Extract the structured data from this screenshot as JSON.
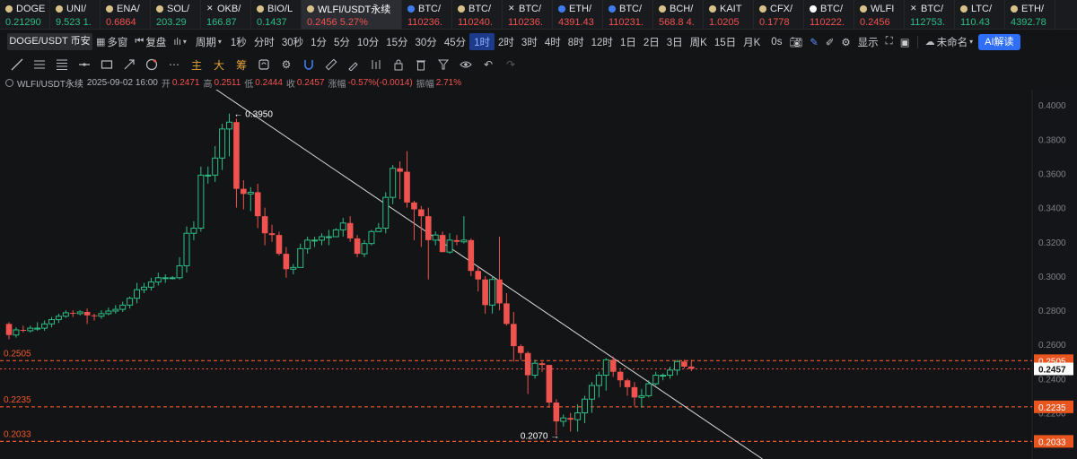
{
  "tickers": [
    {
      "symbol": "DOGE",
      "price": "0.21290",
      "dir": "up",
      "icon": "coin-icon"
    },
    {
      "symbol": "UNI/",
      "price": "9.523 1.",
      "dir": "up",
      "icon": "coin-icon"
    },
    {
      "symbol": "ENA/",
      "price": "0.6864",
      "dir": "down",
      "icon": "coin-icon"
    },
    {
      "symbol": "SOL/",
      "price": "203.29",
      "dir": "up",
      "icon": "coin-icon"
    },
    {
      "symbol": "OKB/",
      "price": "166.87",
      "dir": "up",
      "icon": "okx-icon"
    },
    {
      "symbol": "BIO/L",
      "price": "0.1437",
      "dir": "up",
      "icon": "coin-icon"
    },
    {
      "symbol": "WLFI/USDT永续",
      "price": "0.2456  5.27%",
      "dir": "down",
      "icon": "coin-icon",
      "active": true
    },
    {
      "symbol": "BTC/",
      "price": "110236.",
      "dir": "down",
      "icon": "binance-icon"
    },
    {
      "symbol": "BTC/",
      "price": "110240.",
      "dir": "down",
      "icon": "coin-icon"
    },
    {
      "symbol": "BTC/",
      "price": "110236.",
      "dir": "down",
      "icon": "okx-icon"
    },
    {
      "symbol": "ETH/",
      "price": "4391.43",
      "dir": "down",
      "icon": "binance-icon"
    },
    {
      "symbol": "BTC/",
      "price": "110231.",
      "dir": "down",
      "icon": "binance-icon"
    },
    {
      "symbol": "BCH/",
      "price": "568.8 4.",
      "dir": "down",
      "icon": "coin-icon"
    },
    {
      "symbol": "KAIT",
      "price": "1.0205",
      "dir": "down",
      "icon": "coin-icon"
    },
    {
      "symbol": "CFX/",
      "price": "0.1778",
      "dir": "down",
      "icon": "coin-icon"
    },
    {
      "symbol": "BTC/",
      "price": "110222.",
      "dir": "down",
      "icon": "white-icon"
    },
    {
      "symbol": "WLFI",
      "price": "0.2456",
      "dir": "down",
      "icon": "coin-icon"
    },
    {
      "symbol": "BTC/",
      "price": "112753.",
      "dir": "up",
      "icon": "okx-icon"
    },
    {
      "symbol": "LTC/",
      "price": "110.43",
      "dir": "up",
      "icon": "coin-icon"
    },
    {
      "symbol": "ETH/",
      "price": "4392.78",
      "dir": "up",
      "icon": "coin-icon"
    }
  ],
  "toolbar": {
    "pair_label": "DOGE/USDT 币安",
    "multi_window": "多窗",
    "replay": "复盘",
    "period": "周期",
    "intervals": [
      "1秒",
      "分时",
      "30秒",
      "1分",
      "5分",
      "10分",
      "15分",
      "30分",
      "45分",
      "1时",
      "2时",
      "3时",
      "4时",
      "8时",
      "12时",
      "1日",
      "2日",
      "3日",
      "周K",
      "15日",
      "月K"
    ],
    "selected_interval": "1时",
    "countdown": "0s",
    "display": "显示",
    "unnamed": "未命名",
    "ai": "AI解读"
  },
  "drawing_tools": {
    "gold_labels": [
      "主",
      "大",
      "筹"
    ]
  },
  "info": {
    "symbol": "WLFI/USDT永续",
    "datetime": "2025-09-02 16:00",
    "open_label": "开",
    "open": "0.2471",
    "high_label": "高",
    "high": "0.2511",
    "low_label": "低",
    "low": "0.2444",
    "close_label": "收",
    "close": "0.2457",
    "change_label": "涨幅",
    "change": "-0.57%(-0.0014)",
    "amp_label": "振幅",
    "amp": "2.71%"
  },
  "chart_data": {
    "type": "candlestick",
    "ylim": [
      0.193,
      0.409
    ],
    "y_ticks": [
      "0.4000",
      "0.3800",
      "0.3600",
      "0.3400",
      "0.3200",
      "0.3000",
      "0.2800",
      "0.2600",
      "0.2400",
      "0.2200"
    ],
    "y_tick_values": [
      0.4,
      0.38,
      0.36,
      0.34,
      0.32,
      0.3,
      0.28,
      0.26,
      0.24,
      0.22
    ],
    "annotations": [
      {
        "label": "← 0.3950",
        "value": 0.395
      },
      {
        "label": "0.2070 →",
        "value": 0.207
      }
    ],
    "horizontal_levels": [
      {
        "value": 0.2505,
        "label": "0.2505"
      },
      {
        "value": 0.2235,
        "label": "0.2235"
      },
      {
        "value": 0.2033,
        "label": "0.2033"
      }
    ],
    "current_price": {
      "value": 0.2457,
      "label": "0.2457"
    },
    "trendline": {
      "from_index": 29,
      "from_value": 0.4095,
      "to_index": 106,
      "to_value": 0.193
    },
    "candles": [
      [
        0.272,
        0.2655,
        0.273,
        0.263
      ],
      [
        0.2655,
        0.2685,
        0.27,
        0.264
      ],
      [
        0.2685,
        0.268,
        0.271,
        0.267
      ],
      [
        0.268,
        0.2695,
        0.271,
        0.267
      ],
      [
        0.2695,
        0.2695,
        0.273,
        0.268
      ],
      [
        0.2695,
        0.272,
        0.274,
        0.268
      ],
      [
        0.272,
        0.2745,
        0.276,
        0.27
      ],
      [
        0.2745,
        0.2765,
        0.278,
        0.2725
      ],
      [
        0.2765,
        0.2785,
        0.28,
        0.2755
      ],
      [
        0.2785,
        0.278,
        0.28,
        0.276
      ],
      [
        0.278,
        0.279,
        0.28,
        0.277
      ],
      [
        0.279,
        0.277,
        0.281,
        0.272
      ],
      [
        0.277,
        0.2765,
        0.278,
        0.274
      ],
      [
        0.2765,
        0.278,
        0.28,
        0.275
      ],
      [
        0.278,
        0.2795,
        0.2815,
        0.277
      ],
      [
        0.2795,
        0.2805,
        0.283,
        0.278
      ],
      [
        0.2805,
        0.283,
        0.285,
        0.279
      ],
      [
        0.283,
        0.287,
        0.288,
        0.281
      ],
      [
        0.287,
        0.292,
        0.296,
        0.284
      ],
      [
        0.292,
        0.2935,
        0.296,
        0.29
      ],
      [
        0.2935,
        0.2965,
        0.299,
        0.2915
      ],
      [
        0.2965,
        0.299,
        0.302,
        0.2945
      ],
      [
        0.299,
        0.299,
        0.301,
        0.296
      ],
      [
        0.299,
        0.299,
        0.3,
        0.298
      ],
      [
        0.299,
        0.306,
        0.311,
        0.298
      ],
      [
        0.306,
        0.325,
        0.329,
        0.302
      ],
      [
        0.325,
        0.328,
        0.332,
        0.321
      ],
      [
        0.328,
        0.359,
        0.364,
        0.326
      ],
      [
        0.359,
        0.359,
        0.364,
        0.354
      ],
      [
        0.359,
        0.369,
        0.376,
        0.355
      ],
      [
        0.369,
        0.386,
        0.389,
        0.362
      ],
      [
        0.386,
        0.39,
        0.395,
        0.37
      ],
      [
        0.39,
        0.351,
        0.392,
        0.34
      ],
      [
        0.351,
        0.348,
        0.356,
        0.339
      ],
      [
        0.348,
        0.349,
        0.352,
        0.338
      ],
      [
        0.349,
        0.335,
        0.354,
        0.328
      ],
      [
        0.335,
        0.325,
        0.34,
        0.318
      ],
      [
        0.325,
        0.324,
        0.33,
        0.32
      ],
      [
        0.324,
        0.313,
        0.326,
        0.312
      ],
      [
        0.313,
        0.304,
        0.317,
        0.299
      ],
      [
        0.304,
        0.305,
        0.307,
        0.301
      ],
      [
        0.305,
        0.316,
        0.319,
        0.305
      ],
      [
        0.316,
        0.321,
        0.323,
        0.313
      ],
      [
        0.321,
        0.321,
        0.323,
        0.317
      ],
      [
        0.321,
        0.323,
        0.325,
        0.318
      ],
      [
        0.323,
        0.323,
        0.327,
        0.318
      ],
      [
        0.323,
        0.327,
        0.328,
        0.323
      ],
      [
        0.327,
        0.331,
        0.334,
        0.323
      ],
      [
        0.331,
        0.322,
        0.335,
        0.32
      ],
      [
        0.322,
        0.313,
        0.324,
        0.311
      ],
      [
        0.313,
        0.319,
        0.321,
        0.311
      ],
      [
        0.319,
        0.326,
        0.327,
        0.318
      ],
      [
        0.326,
        0.328,
        0.331,
        0.326
      ],
      [
        0.328,
        0.346,
        0.349,
        0.325
      ],
      [
        0.346,
        0.363,
        0.365,
        0.342
      ],
      [
        0.363,
        0.361,
        0.367,
        0.345
      ],
      [
        0.361,
        0.343,
        0.373,
        0.34
      ],
      [
        0.343,
        0.339,
        0.344,
        0.321
      ],
      [
        0.339,
        0.335,
        0.341,
        0.317
      ],
      [
        0.335,
        0.321,
        0.34,
        0.298
      ],
      [
        0.321,
        0.324,
        0.326,
        0.318
      ],
      [
        0.324,
        0.314,
        0.326,
        0.314
      ],
      [
        0.314,
        0.321,
        0.325,
        0.313
      ],
      [
        0.321,
        0.32,
        0.324,
        0.318
      ],
      [
        0.32,
        0.321,
        0.335,
        0.319
      ],
      [
        0.321,
        0.303,
        0.322,
        0.3
      ],
      [
        0.303,
        0.298,
        0.305,
        0.291
      ],
      [
        0.298,
        0.283,
        0.3,
        0.278
      ],
      [
        0.283,
        0.298,
        0.3,
        0.278
      ],
      [
        0.298,
        0.284,
        0.323,
        0.28
      ],
      [
        0.284,
        0.272,
        0.29,
        0.271
      ],
      [
        0.272,
        0.259,
        0.279,
        0.25
      ],
      [
        0.259,
        0.255,
        0.26,
        0.251
      ],
      [
        0.255,
        0.242,
        0.256,
        0.231
      ],
      [
        0.242,
        0.249,
        0.251,
        0.24
      ],
      [
        0.249,
        0.248,
        0.25,
        0.244
      ],
      [
        0.248,
        0.226,
        0.248,
        0.223
      ],
      [
        0.226,
        0.215,
        0.228,
        0.207
      ],
      [
        0.215,
        0.217,
        0.219,
        0.212
      ],
      [
        0.217,
        0.216,
        0.22,
        0.209
      ],
      [
        0.216,
        0.22,
        0.225,
        0.209
      ],
      [
        0.22,
        0.228,
        0.23,
        0.214
      ],
      [
        0.228,
        0.236,
        0.238,
        0.22
      ],
      [
        0.236,
        0.242,
        0.244,
        0.229
      ],
      [
        0.242,
        0.251,
        0.252,
        0.233
      ],
      [
        0.251,
        0.244,
        0.253,
        0.241
      ],
      [
        0.244,
        0.239,
        0.245,
        0.235
      ],
      [
        0.239,
        0.235,
        0.24,
        0.23
      ],
      [
        0.235,
        0.229,
        0.238,
        0.224
      ],
      [
        0.229,
        0.23,
        0.234,
        0.223
      ],
      [
        0.23,
        0.237,
        0.239,
        0.229
      ],
      [
        0.237,
        0.242,
        0.244,
        0.236
      ],
      [
        0.242,
        0.242,
        0.243,
        0.239
      ],
      [
        0.242,
        0.245,
        0.247,
        0.24
      ],
      [
        0.245,
        0.25,
        0.251,
        0.242
      ],
      [
        0.25,
        0.247,
        0.2511,
        0.246
      ],
      [
        0.2471,
        0.2457,
        0.2511,
        0.2444
      ]
    ]
  },
  "colors": {
    "up": "#2ebd85",
    "down": "#f0524f",
    "accent": "#2f6ef6",
    "level": "#f0582a",
    "background": "#131416"
  }
}
